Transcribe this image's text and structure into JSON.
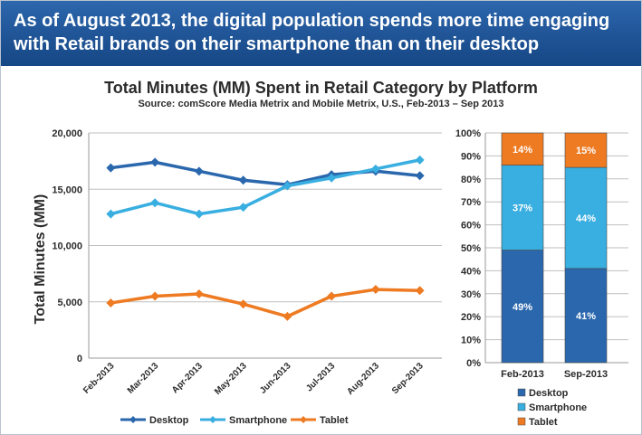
{
  "banner": {
    "line1": "As of August 2013, the digital population spends more time engaging",
    "line2": "with Retail brands on their smartphone than on their desktop"
  },
  "chart_data": [
    {
      "type": "line",
      "title": "Total Minutes (MM) Spent in Retail Category by Platform",
      "subtitle": "Source: comScore Media Metrix and Mobile Metrix, U.S., Feb-2013 – Sep 2013",
      "ylabel": "Total Minutes (MM)",
      "xlabel": "",
      "ylim": [
        0,
        20000
      ],
      "yticks": [
        "0",
        "5,000",
        "10,000",
        "15,000",
        "20,000"
      ],
      "categories": [
        "Feb-2013",
        "Mar-2013",
        "Apr-2013",
        "May-2013",
        "Jun-2013",
        "Jul-2013",
        "Aug-2013",
        "Sep-2013"
      ],
      "grid": true,
      "legend": "bottom",
      "series": [
        {
          "name": "Desktop",
          "color": "#2a67ad",
          "values": [
            16900,
            17400,
            16600,
            15800,
            15400,
            16300,
            16600,
            16200
          ]
        },
        {
          "name": "Smartphone",
          "color": "#39aee0",
          "values": [
            12800,
            13800,
            12800,
            13400,
            15300,
            16000,
            16800,
            17600
          ]
        },
        {
          "name": "Tablet",
          "color": "#ee7a22",
          "values": [
            4900,
            5500,
            5700,
            4800,
            3700,
            5500,
            6100,
            6000
          ]
        }
      ]
    },
    {
      "type": "bar",
      "stacked": true,
      "percent": true,
      "ylim": [
        0,
        100
      ],
      "yticks": [
        "0%",
        "10%",
        "20%",
        "30%",
        "40%",
        "50%",
        "60%",
        "70%",
        "80%",
        "90%",
        "100%"
      ],
      "categories": [
        "Feb-2013",
        "Sep-2013"
      ],
      "legend": "bottom",
      "series": [
        {
          "name": "Desktop",
          "color": "#2a67ad",
          "values": [
            49,
            41
          ],
          "labels": [
            "49%",
            "41%"
          ]
        },
        {
          "name": "Smartphone",
          "color": "#39aee0",
          "values": [
            37,
            44
          ],
          "labels": [
            "37%",
            "44%"
          ]
        },
        {
          "name": "Tablet",
          "color": "#ee7a22",
          "values": [
            14,
            15
          ],
          "labels": [
            "14%",
            "15%"
          ]
        }
      ]
    }
  ]
}
